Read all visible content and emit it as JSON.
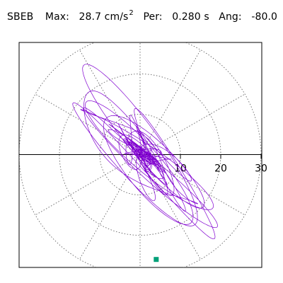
{
  "header": {
    "station": "SBEB",
    "max_label": "Max:",
    "max_value": "28.7 cm/s",
    "max_exponent": "2",
    "period_label": "Per:",
    "period_value": "0.280 s",
    "angle_label": "Ang:",
    "angle_value": "-80.0"
  },
  "chart_data": {
    "type": "scatter",
    "subtype": "polar-orbit",
    "units": "cm/s^2",
    "radial_ticks": [
      "10",
      "20",
      "30"
    ],
    "radial_range": [
      0,
      30
    ],
    "grid": true,
    "orbit_color": "#8000d0",
    "marker_color": "#00a078",
    "end_marker": {
      "x": 4,
      "y": -26
    }
  }
}
